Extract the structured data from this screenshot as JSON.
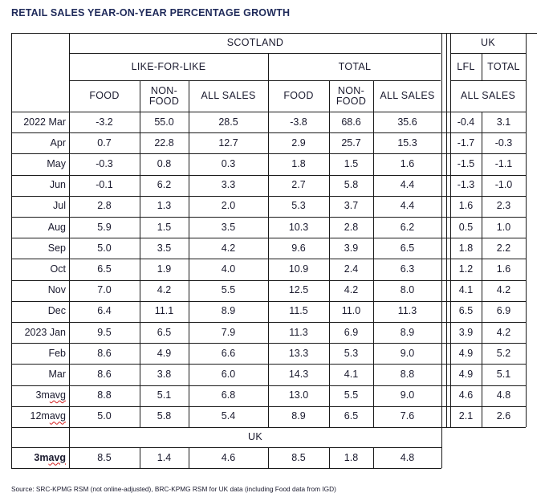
{
  "title": "RETAIL SALES YEAR-ON-YEAR PERCENTAGE GROWTH",
  "headers": {
    "scotland": "SCOTLAND",
    "uk": "UK",
    "like_for_like": "LIKE-FOR-LIKE",
    "total": "TOTAL",
    "lfl": "LFL",
    "uk_total": "TOTAL",
    "food": "FOOD",
    "non_food": "NON-\nFOOD",
    "all_sales": "ALL SALES",
    "uk_all_sales": "ALL SALES",
    "uk_bottom": "UK"
  },
  "rows": [
    {
      "label": "2022 Mar",
      "values": [
        "-3.2",
        "55.0",
        "28.5",
        "-3.8",
        "68.6",
        "35.6",
        "-0.4",
        "3.1"
      ]
    },
    {
      "label": "Apr",
      "values": [
        "0.7",
        "22.8",
        "12.7",
        "2.9",
        "25.7",
        "15.3",
        "-1.7",
        "-0.3"
      ]
    },
    {
      "label": "May",
      "values": [
        "-0.3",
        "0.8",
        "0.3",
        "1.8",
        "1.5",
        "1.6",
        "-1.5",
        "-1.1"
      ]
    },
    {
      "label": "Jun",
      "values": [
        "-0.1",
        "6.2",
        "3.3",
        "2.7",
        "5.8",
        "4.4",
        "-1.3",
        "-1.0"
      ]
    },
    {
      "label": "Jul",
      "values": [
        "2.8",
        "1.3",
        "2.0",
        "5.3",
        "3.7",
        "4.4",
        "1.6",
        "2.3"
      ]
    },
    {
      "label": "Aug",
      "values": [
        "5.9",
        "1.5",
        "3.5",
        "10.3",
        "2.8",
        "6.2",
        "0.5",
        "1.0"
      ]
    },
    {
      "label": "Sep",
      "values": [
        "5.0",
        "3.5",
        "4.2",
        "9.6",
        "3.9",
        "6.5",
        "1.8",
        "2.2"
      ]
    },
    {
      "label": "Oct",
      "values": [
        "6.5",
        "1.9",
        "4.0",
        "10.9",
        "2.4",
        "6.3",
        "1.2",
        "1.6"
      ]
    },
    {
      "label": "Nov",
      "values": [
        "7.0",
        "4.2",
        "5.5",
        "12.5",
        "4.2",
        "8.0",
        "4.1",
        "4.2"
      ]
    },
    {
      "label": "Dec",
      "values": [
        "6.4",
        "11.1",
        "8.9",
        "11.5",
        "11.0",
        "11.3",
        "6.5",
        "6.9"
      ]
    },
    {
      "label": "2023 Jan",
      "values": [
        "9.5",
        "6.5",
        "7.9",
        "11.3",
        "6.9",
        "8.9",
        "3.9",
        "4.2"
      ]
    },
    {
      "label": "Feb",
      "values": [
        "8.6",
        "4.9",
        "6.6",
        "13.3",
        "5.3",
        "9.0",
        "4.9",
        "5.2"
      ]
    },
    {
      "label": "Mar",
      "values": [
        "8.6",
        "3.8",
        "6.0",
        "14.3",
        "4.1",
        "8.8",
        "4.9",
        "5.1"
      ]
    },
    {
      "label": "3m avg",
      "values": [
        "8.8",
        "5.1",
        "6.8",
        "13.0",
        "5.5",
        "9.0",
        "4.6",
        "4.8"
      ]
    },
    {
      "label": "12m avg",
      "values": [
        "5.0",
        "5.8",
        "5.4",
        "8.9",
        "6.5",
        "7.6",
        "2.1",
        "2.6"
      ]
    }
  ],
  "uk_row": {
    "label": "3m avg",
    "values": [
      "8.5",
      "1.4",
      "4.6",
      "8.5",
      "1.8",
      "4.8"
    ]
  },
  "source": "Source: SRC-KPMG RSM (not online-adjusted), BRC-KPMG RSM for UK data (including Food data from IGD)"
}
